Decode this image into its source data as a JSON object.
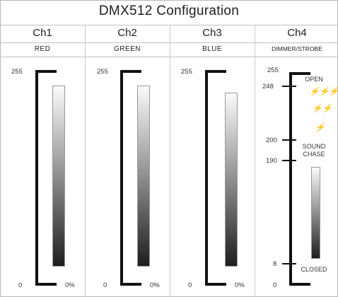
{
  "title": "DMX512 Configuration",
  "channels": [
    {
      "name": "Ch1",
      "label": "RED",
      "max": "255",
      "min": "0",
      "pct": "0%"
    },
    {
      "name": "Ch2",
      "label": "GREEN",
      "max": "255",
      "min": "0",
      "pct": "0%"
    },
    {
      "name": "Ch3",
      "label": "BLUE",
      "max": "255",
      "min": "0",
      "pct": "0%"
    },
    {
      "name": "Ch4",
      "label": "DIMMER/STROBE",
      "max": "255",
      "min": "0"
    }
  ],
  "ch4": {
    "ticks": [
      "248",
      "200",
      "190",
      "8"
    ],
    "open": "OPEN",
    "sound": "SOUND",
    "chase": "CHASE",
    "closed": "CLOSED",
    "strobe_icons": [
      "fast-strobe-icon",
      "medium-strobe-icon",
      "slow-strobe-icon"
    ]
  }
}
